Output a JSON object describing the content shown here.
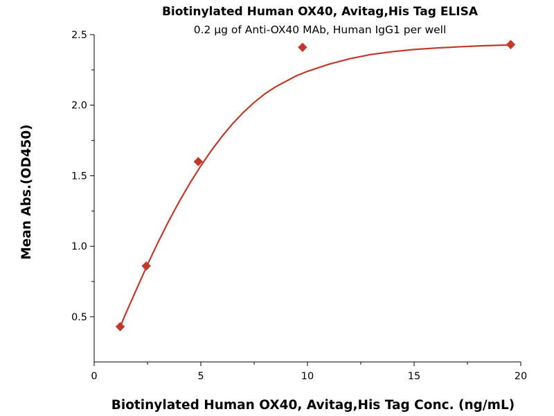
{
  "chart_data": {
    "type": "scatter",
    "title": "Biotinylated Human OX40, Avitag,His Tag ELISA",
    "subtitle": "0.2 μg of Anti-OX40 MAb, Human IgG1 per well",
    "xlabel": "Biotinylated Human OX40, Avitag,His Tag Conc. (ng/mL)",
    "ylabel": "Mean Abs.(OD450)",
    "xlim": [
      0,
      20
    ],
    "ylim": [
      0.18,
      2.5
    ],
    "x_ticks": [
      0,
      5,
      10,
      15,
      20
    ],
    "x_tick_labels": [
      "0",
      "5",
      "10",
      "15",
      "20"
    ],
    "y_ticks": [
      0.5,
      1.0,
      1.5,
      2.0,
      2.5
    ],
    "y_tick_labels": [
      "0.5",
      "1.0",
      "1.5",
      "2.0",
      "2.5"
    ],
    "grid": false,
    "marker": "diamond",
    "color": "#c0392b",
    "series": [
      {
        "x": [
          1.22,
          2.44,
          4.88,
          9.77,
          19.53
        ],
        "y": [
          0.43,
          0.86,
          1.6,
          2.41,
          2.43
        ]
      }
    ],
    "fit_curve": {
      "x": [
        1.22,
        1.5,
        2.0,
        2.5,
        3.0,
        3.5,
        4.0,
        4.5,
        5.0,
        5.5,
        6.0,
        6.5,
        7.0,
        7.5,
        8.0,
        8.5,
        9.0,
        9.5,
        10.0,
        11.0,
        12.0,
        13.0,
        14.0,
        15.0,
        16.0,
        17.0,
        18.0,
        19.0,
        19.53
      ],
      "y": [
        0.43,
        0.53,
        0.7,
        0.87,
        1.03,
        1.18,
        1.32,
        1.45,
        1.57,
        1.68,
        1.78,
        1.87,
        1.95,
        2.02,
        2.08,
        2.13,
        2.17,
        2.21,
        2.24,
        2.29,
        2.33,
        2.36,
        2.38,
        2.395,
        2.405,
        2.413,
        2.42,
        2.425,
        2.427
      ]
    }
  }
}
